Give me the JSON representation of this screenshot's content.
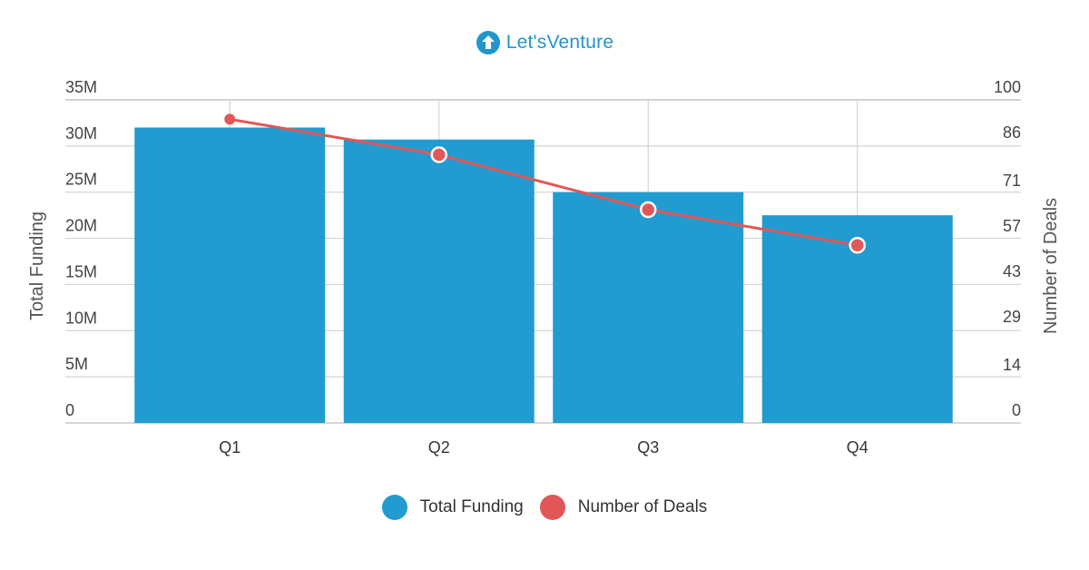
{
  "brand": {
    "name": "Let'sVenture",
    "icon": "upload-arrow-circle-icon",
    "color": "#2196cc"
  },
  "chart_data": {
    "type": "bar",
    "categories": [
      "Q1",
      "Q2",
      "Q3",
      "Q4"
    ],
    "series": [
      {
        "name": "Total Funding",
        "type": "bar",
        "axis": "left",
        "color": "#229bd0",
        "values": [
          32000000,
          30700000,
          25000000,
          22500000
        ]
      },
      {
        "name": "Number of Deals",
        "type": "line",
        "axis": "right",
        "color": "#e15757",
        "values": [
          94,
          83,
          66,
          55
        ]
      }
    ],
    "title": "",
    "xlabel": "",
    "ylabel": "Total Funding",
    "y2label": "Number of Deals",
    "ylim": [
      0,
      35000000
    ],
    "y2lim": [
      0,
      100
    ],
    "yticks": [
      0,
      5000000,
      10000000,
      15000000,
      20000000,
      25000000,
      30000000,
      35000000
    ],
    "ytick_labels": [
      "0",
      "5M",
      "10M",
      "15M",
      "20M",
      "25M",
      "30M",
      "35M"
    ],
    "y2ticks": [
      0,
      14,
      29,
      43,
      57,
      71,
      86,
      100
    ],
    "y2tick_labels": [
      "0",
      "14",
      "29",
      "43",
      "57",
      "71",
      "86",
      "100"
    ],
    "grid": true,
    "legend": "bottom-center"
  }
}
